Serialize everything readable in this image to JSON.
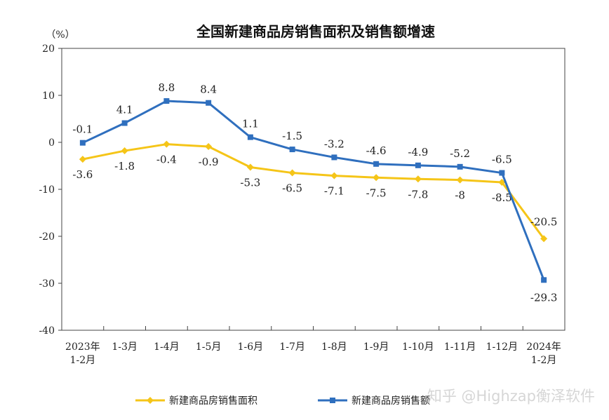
{
  "chart_data": {
    "type": "line",
    "title": "全国新建商品房销售面积及销售额增速",
    "unit_label": "（%）",
    "categories": [
      [
        "2023年",
        "1-2月"
      ],
      [
        "1-3月"
      ],
      [
        "1-4月"
      ],
      [
        "1-5月"
      ],
      [
        "1-6月"
      ],
      [
        "1-7月"
      ],
      [
        "1-8月"
      ],
      [
        "1-9月"
      ],
      [
        "1-10月"
      ],
      [
        "1-11月"
      ],
      [
        "1-12月"
      ],
      [
        "2024年",
        "1-2月"
      ]
    ],
    "ylim": [
      -40,
      20
    ],
    "yticks": [
      20,
      10,
      0,
      -10,
      -20,
      -30,
      -40
    ],
    "grid": false,
    "legend_position": "bottom",
    "series": [
      {
        "name": "新建商品房销售面积",
        "color": "#f5c518",
        "marker": "diamond",
        "values": [
          -3.6,
          -1.8,
          -0.4,
          -0.9,
          -5.3,
          -6.5,
          -7.1,
          -7.5,
          -7.8,
          -8.0,
          -8.5,
          -20.5
        ]
      },
      {
        "name": "新建商品房销售额",
        "color": "#2f6fbe",
        "marker": "square",
        "values": [
          -0.1,
          4.1,
          8.8,
          8.4,
          1.1,
          -1.5,
          -3.2,
          -4.6,
          -4.9,
          -5.2,
          -6.5,
          -29.3
        ]
      }
    ]
  },
  "watermark": "知乎 @Highzap衡泽软件"
}
